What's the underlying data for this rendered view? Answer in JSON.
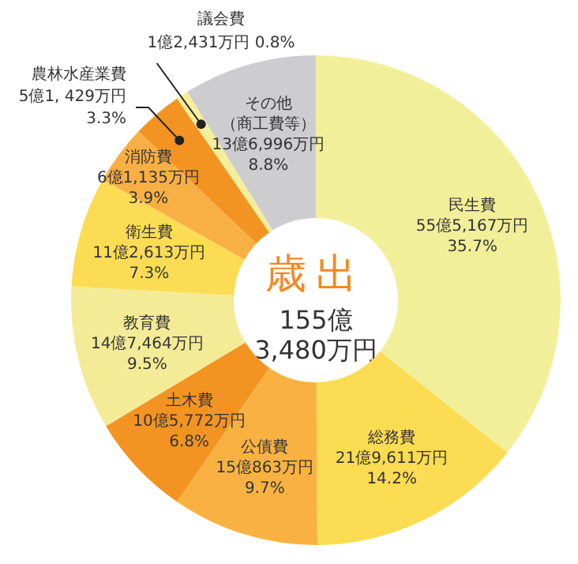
{
  "chart_data": {
    "type": "donut",
    "title": "歳出",
    "annotations": [
      "155億",
      "3,480万円"
    ],
    "categories": [
      "民生費",
      "総務費",
      "公債費",
      "土木費",
      "教育費",
      "衛生費",
      "消防費",
      "農林水産業費",
      "議会費",
      "その他（商工費等）"
    ],
    "values": [
      35.7,
      14.2,
      9.7,
      6.8,
      9.5,
      7.3,
      3.9,
      3.3,
      0.8,
      8.8
    ],
    "value_labels": [
      "55億5,167万円\n35.7%",
      "21億9,611万円\n14.2%",
      "15億863万円\n9.7%",
      "10億5,772万円\n6.8%",
      "14億7,464万円\n9.5%",
      "11億2,613万円\n7.3%",
      "6億1,135万円\n3.9%",
      "5億1, 429万円\n3.3%",
      "1億2,431万円  0.8%",
      "13億6,996万円\n8.8%"
    ],
    "colors": [
      "#f2ef9a",
      "#fbdc52",
      "#f9b242",
      "#f39422",
      "#f4eb97",
      "#fcdc55",
      "#f8b045",
      "#f39422",
      "#f5ee9a",
      "#cdcdcf"
    ],
    "legend": false
  }
}
